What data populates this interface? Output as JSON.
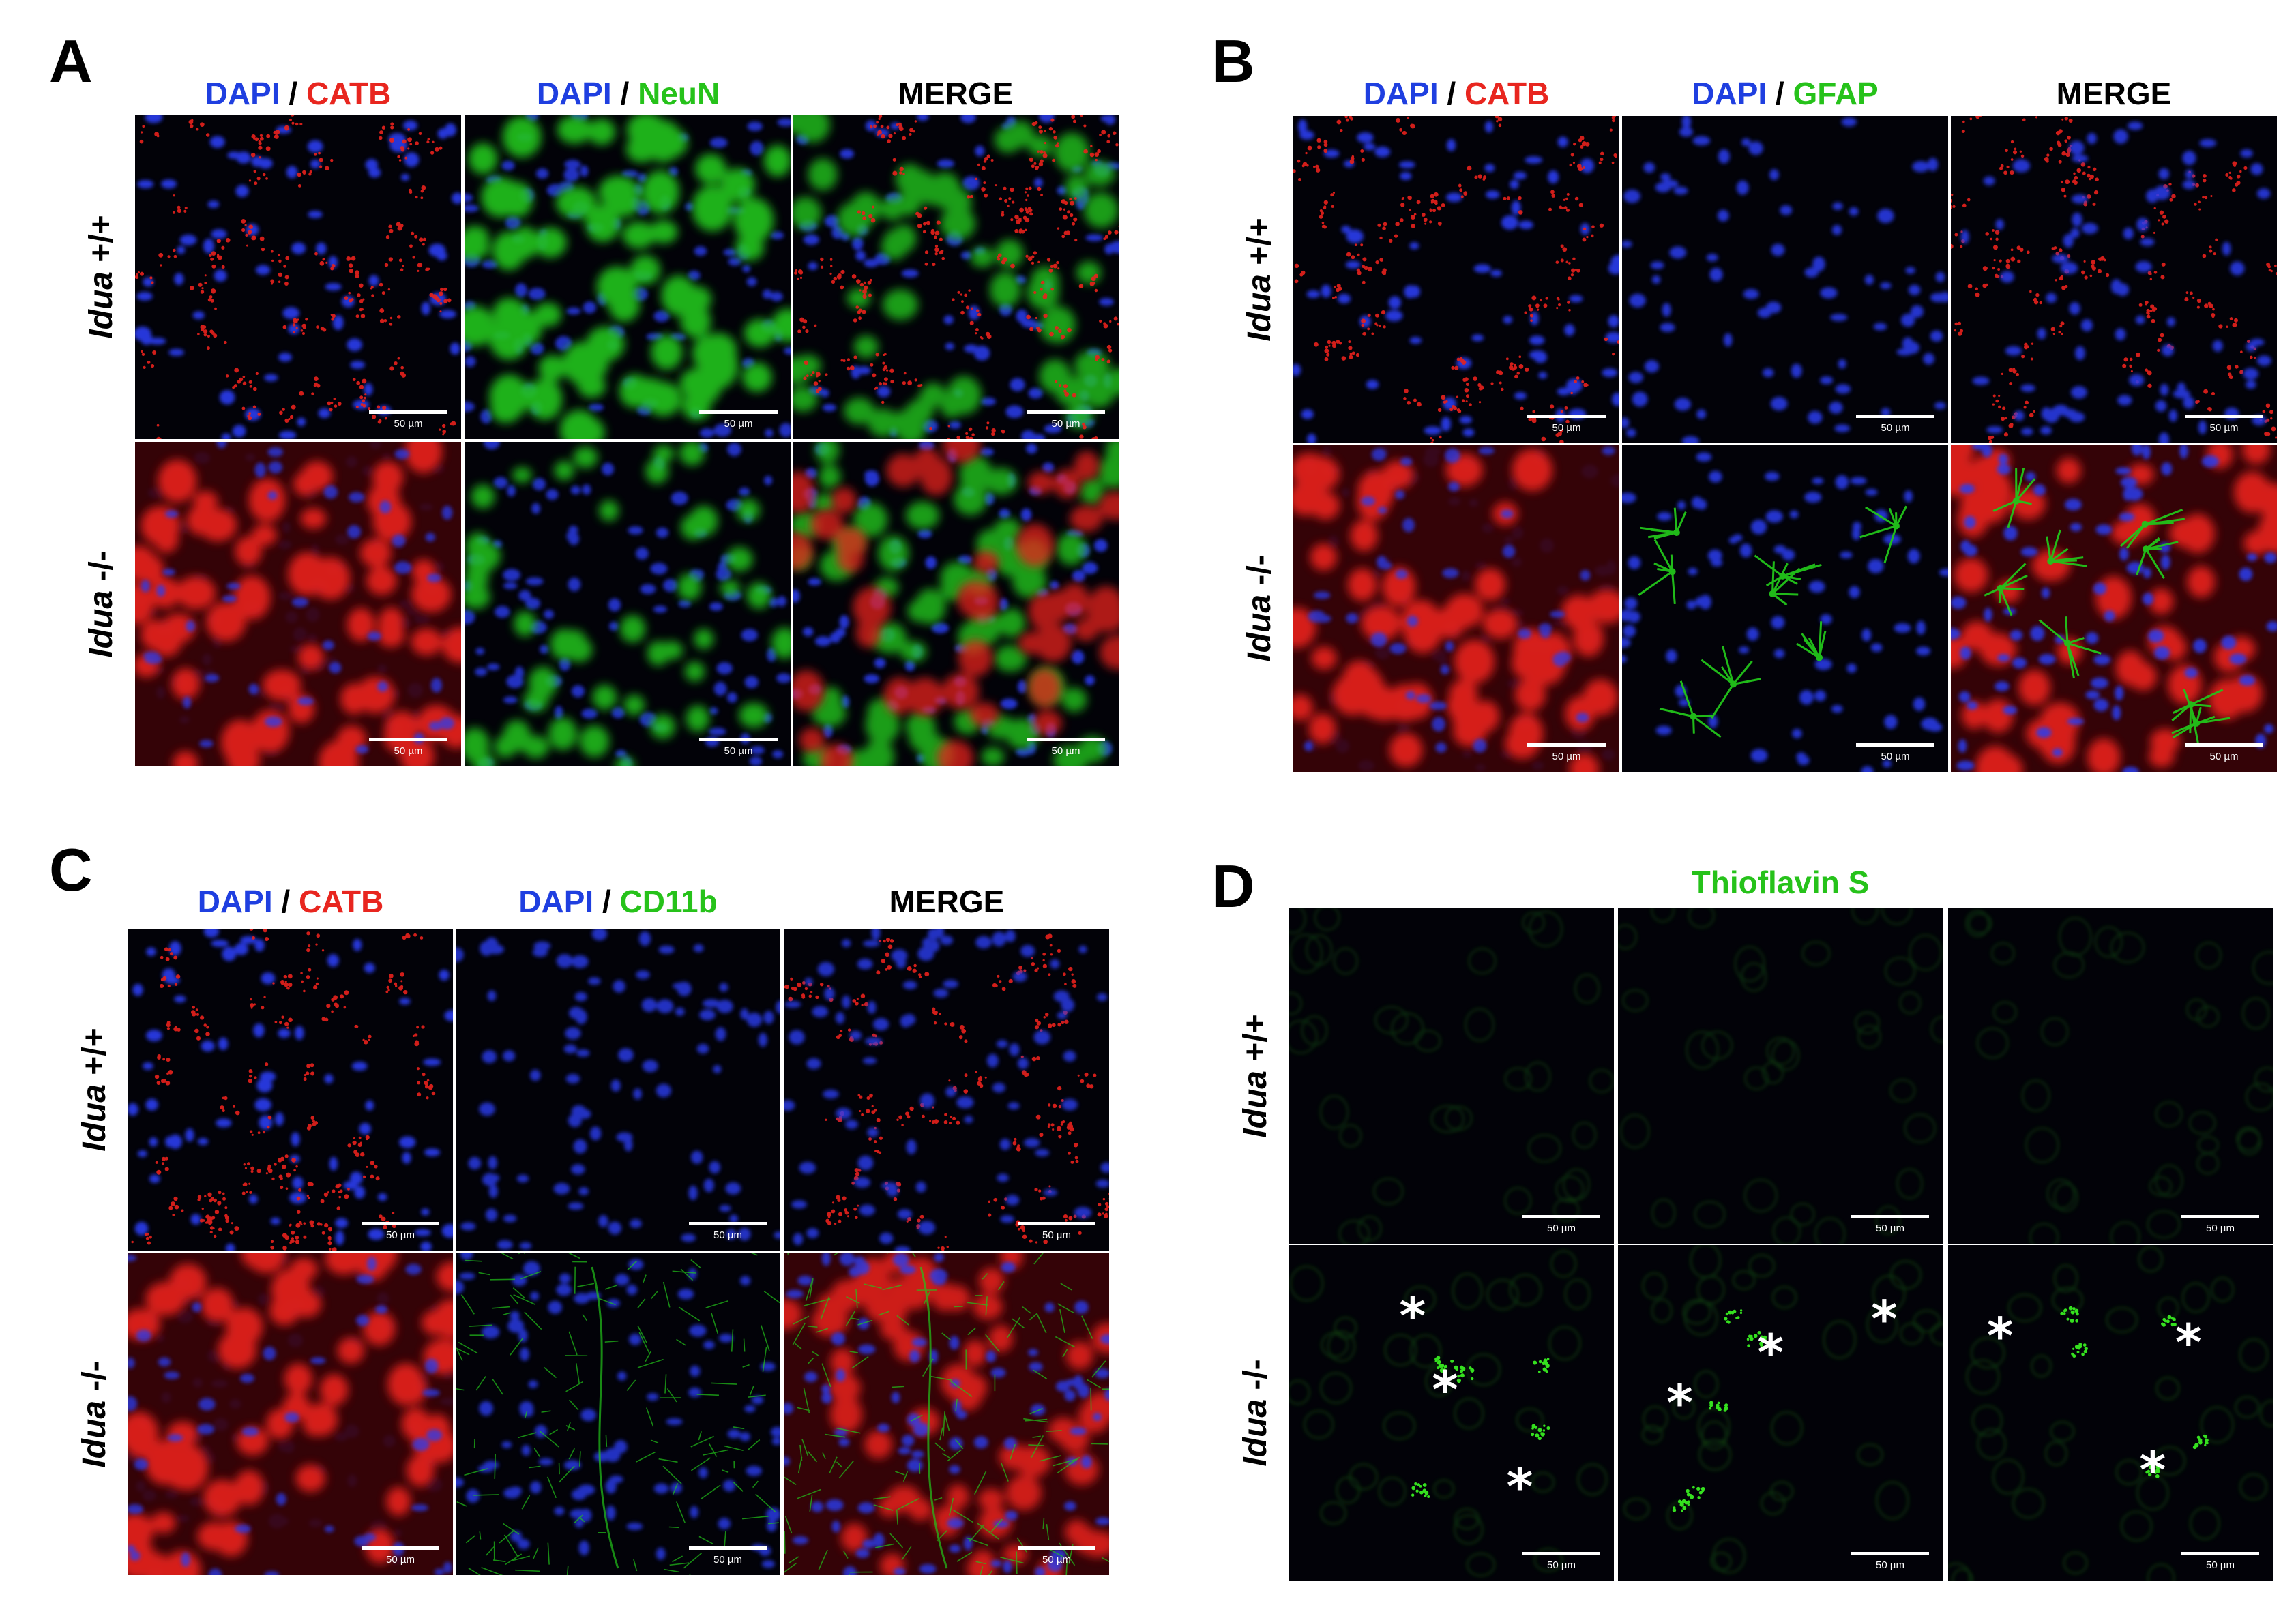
{
  "panels": [
    {
      "letter": "A",
      "columns": [
        {
          "parts": [
            {
              "text": "DAPI",
              "color": "#1f3fe0"
            },
            {
              "text": " / ",
              "color": "#000000"
            },
            {
              "text": "CATB",
              "color": "#e8261f"
            }
          ]
        },
        {
          "parts": [
            {
              "text": "DAPI",
              "color": "#1f3fe0"
            },
            {
              "text": " / ",
              "color": "#000000"
            },
            {
              "text": "NeuN",
              "color": "#26c21a"
            }
          ]
        },
        {
          "parts": [
            {
              "text": "MERGE",
              "color": "#000000"
            }
          ]
        }
      ],
      "rows": [
        {
          "genotype": "Idua",
          "suffix": " +/+",
          "tiles": [
            "catb-wt",
            "neun-wt",
            "merge-neun-wt"
          ]
        },
        {
          "genotype": "Idua",
          "suffix": " -/-",
          "tiles": [
            "catb-ko",
            "neun-ko",
            "merge-neun-ko"
          ]
        }
      ]
    },
    {
      "letter": "B",
      "columns": [
        {
          "parts": [
            {
              "text": "DAPI",
              "color": "#1f3fe0"
            },
            {
              "text": " / ",
              "color": "#000000"
            },
            {
              "text": "CATB",
              "color": "#e8261f"
            }
          ]
        },
        {
          "parts": [
            {
              "text": "DAPI",
              "color": "#1f3fe0"
            },
            {
              "text": " / ",
              "color": "#000000"
            },
            {
              "text": "GFAP",
              "color": "#26c21a"
            }
          ]
        },
        {
          "parts": [
            {
              "text": "MERGE",
              "color": "#000000"
            }
          ]
        }
      ],
      "rows": [
        {
          "genotype": "Idua",
          "suffix": " +/+",
          "tiles": [
            "catb-wt",
            "gfap-wt",
            "merge-gfap-wt"
          ]
        },
        {
          "genotype": "Idua",
          "suffix": " -/-",
          "tiles": [
            "catb-ko",
            "gfap-ko",
            "merge-gfap-ko"
          ]
        }
      ]
    },
    {
      "letter": "C",
      "columns": [
        {
          "parts": [
            {
              "text": "DAPI",
              "color": "#1f3fe0"
            },
            {
              "text": " / ",
              "color": "#000000"
            },
            {
              "text": "CATB",
              "color": "#e8261f"
            }
          ]
        },
        {
          "parts": [
            {
              "text": "DAPI",
              "color": "#1f3fe0"
            },
            {
              "text": " / ",
              "color": "#000000"
            },
            {
              "text": "CD11b",
              "color": "#26c21a"
            }
          ]
        },
        {
          "parts": [
            {
              "text": "MERGE",
              "color": "#000000"
            }
          ]
        }
      ],
      "rows": [
        {
          "genotype": "Idua",
          "suffix": " +/+",
          "tiles": [
            "catb-wt",
            "cd11b-wt",
            "merge-cd11b-wt"
          ]
        },
        {
          "genotype": "Idua",
          "suffix": " -/-",
          "tiles": [
            "catb-ko",
            "cd11b-ko",
            "merge-cd11b-ko"
          ]
        }
      ]
    },
    {
      "letter": "D",
      "title": {
        "text": "Thioflavin S",
        "color": "#26c21a"
      },
      "rows": [
        {
          "genotype": "Idua",
          "suffix": " +/+",
          "tiles": [
            "thio-wt",
            "thio-wt",
            "thio-wt"
          ]
        },
        {
          "genotype": "Idua",
          "suffix": " -/-",
          "tiles": [
            "thio-ko",
            "thio-ko",
            "thio-ko"
          ]
        }
      ]
    }
  ],
  "scale_bar_label": "50 µm",
  "asterisk": "*"
}
